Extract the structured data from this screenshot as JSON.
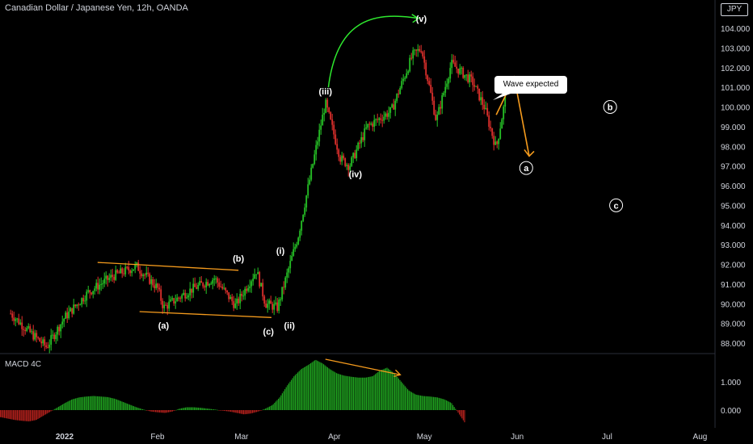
{
  "header": {
    "title": "Canadian Dollar / Japanese Yen, 12h, OANDA",
    "currency_badge": "JPY",
    "scale_label": "10"
  },
  "indicator": {
    "label": "MACD 4C"
  },
  "annotation": {
    "callout": "Wave expected"
  },
  "colors": {
    "background": "#000000",
    "up": "#26c326",
    "down": "#e0302c",
    "macd_pos": "#1f9e1f",
    "macd_neg": "#b0201c",
    "trendline": "#f59b1d",
    "arc": "#2ee82e",
    "text": "#d1d4dc"
  },
  "chart_data": [
    {
      "type": "candlestick",
      "title": "Canadian Dollar / Japanese Yen, 12h, OANDA",
      "x_ticks": [
        "2022",
        "Feb",
        "Mar",
        "Apr",
        "May",
        "Jun",
        "Jul",
        "Aug"
      ],
      "y_ticks": [
        104,
        103,
        102,
        101,
        100,
        99,
        98,
        97,
        96,
        95,
        94,
        93,
        92,
        91,
        90,
        89,
        88
      ],
      "y_tick_labels": [
        "104.000",
        "103.000",
        "102.000",
        "101.000",
        "100.000",
        "99.000",
        "98.000",
        "97.000",
        "96.000",
        "95.000",
        "94.000",
        "93.000",
        "92.000",
        "91.000",
        "90.000",
        "89.000",
        "88.000"
      ],
      "ylim": [
        87.3,
        105.2
      ],
      "price_path": [
        {
          "date": "2021-12-14",
          "price": 89.5
        },
        {
          "date": "2021-12-20",
          "price": 88.6
        },
        {
          "date": "2021-12-26",
          "price": 87.8
        },
        {
          "date": "2022-01-01",
          "price": 89.3
        },
        {
          "date": "2022-01-09",
          "price": 90.6
        },
        {
          "date": "2022-01-17",
          "price": 91.4
        },
        {
          "date": "2022-01-25",
          "price": 91.9
        },
        {
          "date": "2022-02-01",
          "price": 90.8
        },
        {
          "date": "2022-02-03",
          "price": 89.8
        },
        {
          "date": "2022-02-12",
          "price": 90.7
        },
        {
          "date": "2022-02-20",
          "price": 91.3
        },
        {
          "date": "2022-02-27",
          "price": 89.9
        },
        {
          "date": "2022-03-06",
          "price": 91.7
        },
        {
          "date": "2022-03-09",
          "price": 90.0
        },
        {
          "date": "2022-03-13",
          "price": 89.8
        },
        {
          "date": "2022-03-20",
          "price": 93.5
        },
        {
          "date": "2022-03-26",
          "price": 98.0
        },
        {
          "date": "2022-03-29",
          "price": 100.2
        },
        {
          "date": "2022-04-03",
          "price": 97.4
        },
        {
          "date": "2022-04-06",
          "price": 97.0
        },
        {
          "date": "2022-04-12",
          "price": 99.0
        },
        {
          "date": "2022-04-20",
          "price": 99.8
        },
        {
          "date": "2022-04-27",
          "price": 102.6
        },
        {
          "date": "2022-04-30",
          "price": 103.0
        },
        {
          "date": "2022-05-05",
          "price": 99.3
        },
        {
          "date": "2022-05-10",
          "price": 102.2
        },
        {
          "date": "2022-05-17",
          "price": 101.3
        },
        {
          "date": "2022-05-21",
          "price": 100.0
        },
        {
          "date": "2022-05-25",
          "price": 97.9
        },
        {
          "date": "2022-05-28",
          "price": 100.4
        }
      ],
      "wave_labels": [
        {
          "label": "(a)",
          "date": "2022-02-03",
          "price": 88.9
        },
        {
          "label": "(b)",
          "date": "2022-02-28",
          "price": 92.3
        },
        {
          "label": "(c)",
          "date": "2022-03-10",
          "price": 88.6
        },
        {
          "label": "(i)",
          "date": "2022-03-14",
          "price": 92.7
        },
        {
          "label": "(ii)",
          "date": "2022-03-17",
          "price": 88.9
        },
        {
          "label": "(iii)",
          "date": "2022-03-29",
          "price": 100.8
        },
        {
          "label": "(iv)",
          "date": "2022-04-08",
          "price": 96.6
        },
        {
          "label": "(v)",
          "date": "2022-04-30",
          "price": 104.5
        },
        {
          "label": "a",
          "date": "2022-06-04",
          "price": 96.9,
          "circled": true
        },
        {
          "label": "b",
          "date": "2022-07-02",
          "price": 100.0,
          "circled": true
        },
        {
          "label": "c",
          "date": "2022-07-04",
          "price": 95.0,
          "circled": true
        }
      ],
      "projection": [
        {
          "date": "2022-05-31",
          "price": 101.5
        },
        {
          "date": "2022-06-05",
          "price": 97.5
        }
      ]
    },
    {
      "type": "bar",
      "title": "MACD 4C",
      "y_ticks": [
        1.0,
        0.0
      ],
      "y_tick_labels": [
        "1.000",
        "0.000"
      ],
      "ylim": [
        -0.65,
        2.2
      ],
      "values": [
        -0.25,
        -0.3,
        -0.35,
        -0.38,
        -0.4,
        -0.35,
        -0.2,
        -0.05,
        0.1,
        0.25,
        0.38,
        0.45,
        0.48,
        0.5,
        0.48,
        0.46,
        0.4,
        0.3,
        0.2,
        0.1,
        0.02,
        -0.05,
        -0.08,
        -0.1,
        -0.05,
        0.05,
        0.1,
        0.1,
        0.08,
        0.05,
        0.02,
        -0.02,
        -0.05,
        -0.1,
        -0.15,
        -0.12,
        -0.05,
        0.05,
        0.18,
        0.45,
        0.85,
        1.2,
        1.45,
        1.6,
        1.78,
        1.65,
        1.45,
        1.3,
        1.22,
        1.18,
        1.15,
        1.15,
        1.2,
        1.4,
        1.5,
        1.3,
        1.0,
        0.7,
        0.55,
        0.5,
        0.48,
        0.45,
        0.38,
        0.25,
        -0.12,
        -0.5
      ]
    }
  ]
}
